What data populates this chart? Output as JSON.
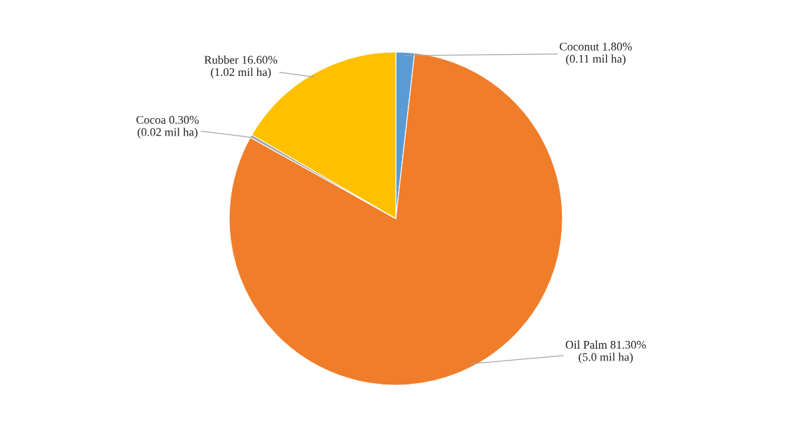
{
  "chart_data": {
    "type": "pie",
    "categories": [
      "Coconut",
      "Oil Palm",
      "Cocoa",
      "Rubber"
    ],
    "values": [
      1.8,
      81.3,
      0.3,
      16.6
    ],
    "value_labels": [
      "1.80%\n(0.11 mil ha)",
      "81.30%\n(5.0 mil ha)",
      "0.30%\n(0.02 mil ha)",
      "16.60%\n(1.02 mil ha)"
    ],
    "colors": [
      "#5b9bd5",
      "#f07d2a",
      "#a5a5a5",
      "#ffc000"
    ],
    "legend": false
  }
}
